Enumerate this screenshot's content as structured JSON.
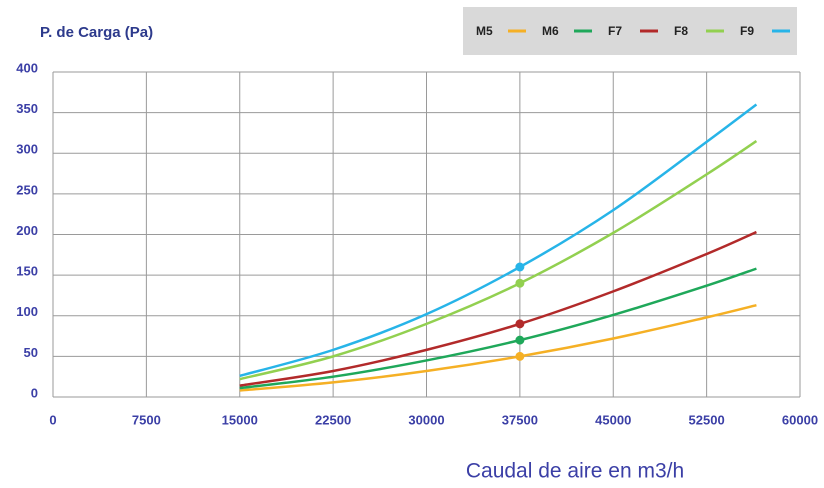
{
  "chart_data": {
    "type": "line",
    "title": "P. de Carga (Pa)",
    "x_label": "Caudal de aire en m3/h",
    "x": [
      15000,
      22500,
      30000,
      37500,
      45000,
      52500,
      56500
    ],
    "series": [
      {
        "name": "M5",
        "color": "#f5b025",
        "values": [
          8,
          18,
          32,
          50,
          72,
          98,
          113
        ]
      },
      {
        "name": "M6",
        "color": "#1fa85a",
        "values": [
          11,
          25,
          45,
          70,
          101,
          137,
          158
        ]
      },
      {
        "name": "F7",
        "color": "#b22a2a",
        "values": [
          14,
          32,
          58,
          90,
          130,
          176,
          203
        ]
      },
      {
        "name": "F8",
        "color": "#92d050",
        "values": [
          22,
          50,
          90,
          140,
          202,
          274,
          315
        ]
      },
      {
        "name": "F9",
        "color": "#27b4e8",
        "values": [
          26,
          58,
          102,
          160,
          230,
          314,
          360
        ]
      }
    ],
    "marker_x": 37500,
    "xlim": [
      0,
      60000
    ],
    "xticks": [
      0,
      7500,
      15000,
      22500,
      30000,
      37500,
      45000,
      52500,
      60000
    ],
    "ylim": [
      0,
      400
    ],
    "yticks": [
      0,
      50,
      100,
      150,
      200,
      250,
      300,
      350,
      400
    ],
    "grid": true
  }
}
